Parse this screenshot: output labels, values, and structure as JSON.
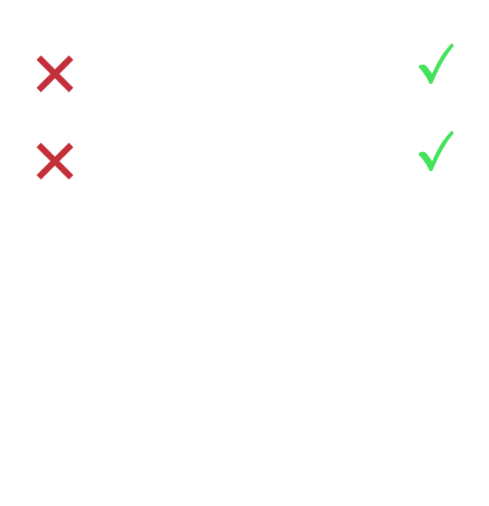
{
  "rows": [
    {
      "left_icon": "cross-icon",
      "right_icon": "check-icon"
    },
    {
      "left_icon": "cross-icon",
      "right_icon": "check-icon"
    }
  ],
  "colors": {
    "cross": "#C3303A",
    "check": "#45E35A",
    "background": "#FFFFFF"
  }
}
